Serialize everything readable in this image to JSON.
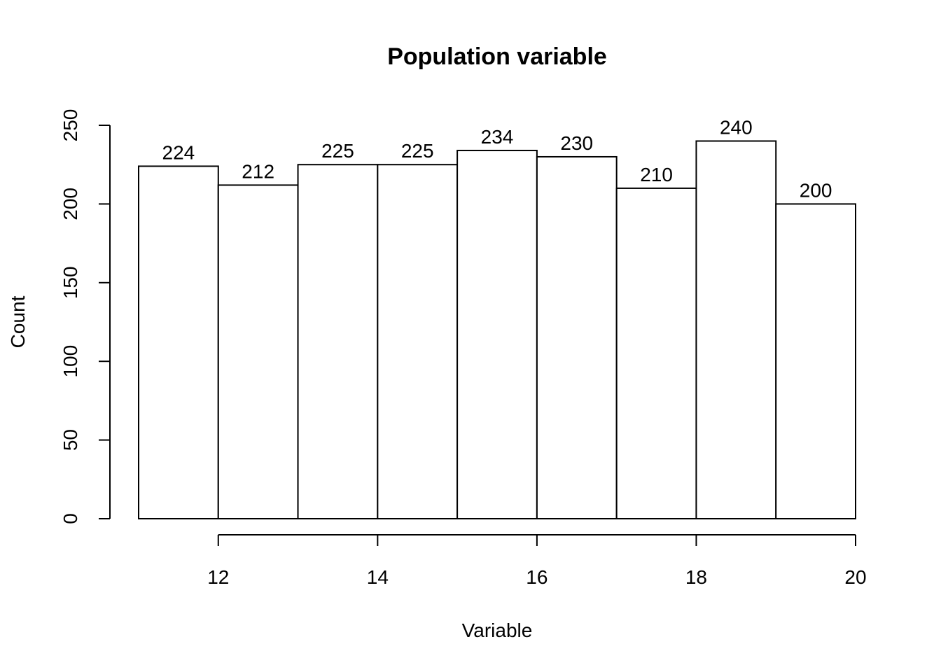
{
  "chart_data": {
    "type": "bar",
    "title": "Population variable",
    "xlabel": "Variable",
    "ylabel": "Count",
    "bins": [
      {
        "from": 11,
        "to": 12,
        "count": 224
      },
      {
        "from": 12,
        "to": 13,
        "count": 212
      },
      {
        "from": 13,
        "to": 14,
        "count": 225
      },
      {
        "from": 14,
        "to": 15,
        "count": 225
      },
      {
        "from": 15,
        "to": 16,
        "count": 234
      },
      {
        "from": 16,
        "to": 17,
        "count": 230
      },
      {
        "from": 17,
        "to": 18,
        "count": 210
      },
      {
        "from": 18,
        "to": 19,
        "count": 240
      },
      {
        "from": 19,
        "to": 20,
        "count": 200
      }
    ],
    "values": [
      224,
      212,
      225,
      225,
      234,
      230,
      210,
      240,
      200
    ],
    "xlim": [
      11,
      20
    ],
    "ylim": [
      0,
      250
    ],
    "x_ticks": [
      "12",
      "14",
      "16",
      "18",
      "20"
    ],
    "y_ticks": [
      "0",
      "50",
      "100",
      "150",
      "200",
      "250"
    ],
    "grid": false,
    "legend": "none",
    "bar_fill": "#ffffff",
    "bar_stroke": "#000000"
  }
}
